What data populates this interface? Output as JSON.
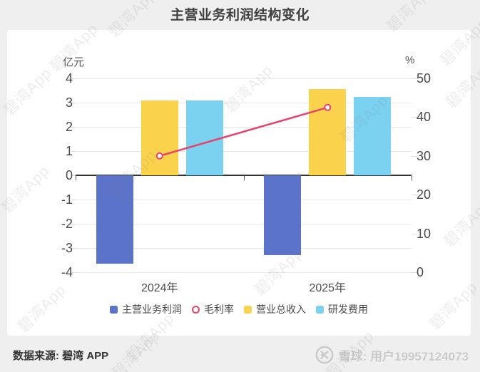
{
  "title": "主营业务利润结构变化",
  "watermark_text": "碧湾App",
  "footer": {
    "source_label": "数据来源: 碧湾 APP",
    "social_label": "雪球: 用户19957124073",
    "social_logo_icon": "xueqiu-logo"
  },
  "chart_data": {
    "type": "bar",
    "subtype": "grouped-bars-with-line",
    "categories": [
      "2024年",
      "2025年"
    ],
    "series": [
      {
        "name": "主营业务利润",
        "type": "bar",
        "axis": "left",
        "color": "#5b74c9",
        "values": [
          -3.65,
          -3.3
        ]
      },
      {
        "name": "毛利率",
        "type": "line",
        "axis": "right",
        "color": "#e8436b",
        "values": [
          30,
          42.5
        ]
      },
      {
        "name": "营业总收入",
        "type": "bar",
        "axis": "left",
        "color": "#fbd24b",
        "values": [
          3.1,
          3.55
        ]
      },
      {
        "name": "研发费用",
        "type": "bar",
        "axis": "left",
        "color": "#7bd1f0",
        "values": [
          3.1,
          3.25
        ]
      }
    ],
    "left_axis": {
      "title": "亿元",
      "min": -4,
      "max": 4,
      "ticks": [
        4,
        3,
        2,
        1,
        0,
        -1,
        -2,
        -3,
        -4
      ]
    },
    "right_axis": {
      "title": "%",
      "min": 0,
      "max": 50,
      "ticks": [
        50,
        40,
        30,
        20,
        10,
        0
      ]
    },
    "legend_position": "bottom",
    "grid": true,
    "colors": {
      "grid": "#e8e8e8",
      "zero_axis": "#333333",
      "line_marker_fill": "#ffffff"
    }
  }
}
